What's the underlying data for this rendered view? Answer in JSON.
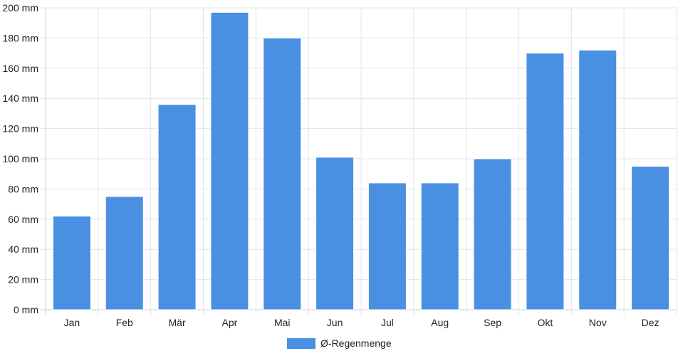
{
  "chart_data": {
    "type": "bar",
    "categories": [
      "Jan",
      "Feb",
      "Mär",
      "Apr",
      "Mai",
      "Jun",
      "Jul",
      "Aug",
      "Sep",
      "Okt",
      "Nov",
      "Dez"
    ],
    "series": [
      {
        "name": "Ø-Regenmenge",
        "color": "#4a90e2",
        "values": [
          62,
          75,
          136,
          197,
          180,
          101,
          84,
          84,
          100,
          170,
          172,
          95
        ]
      }
    ],
    "y_ticks": [
      "0 mm",
      "20 mm",
      "40 mm",
      "60 mm",
      "80 mm",
      "100 mm",
      "120 mm",
      "140 mm",
      "160 mm",
      "180 mm",
      "200 mm"
    ],
    "ylim": [
      0,
      200
    ],
    "grid": true,
    "legend_position": "bottom-center"
  }
}
